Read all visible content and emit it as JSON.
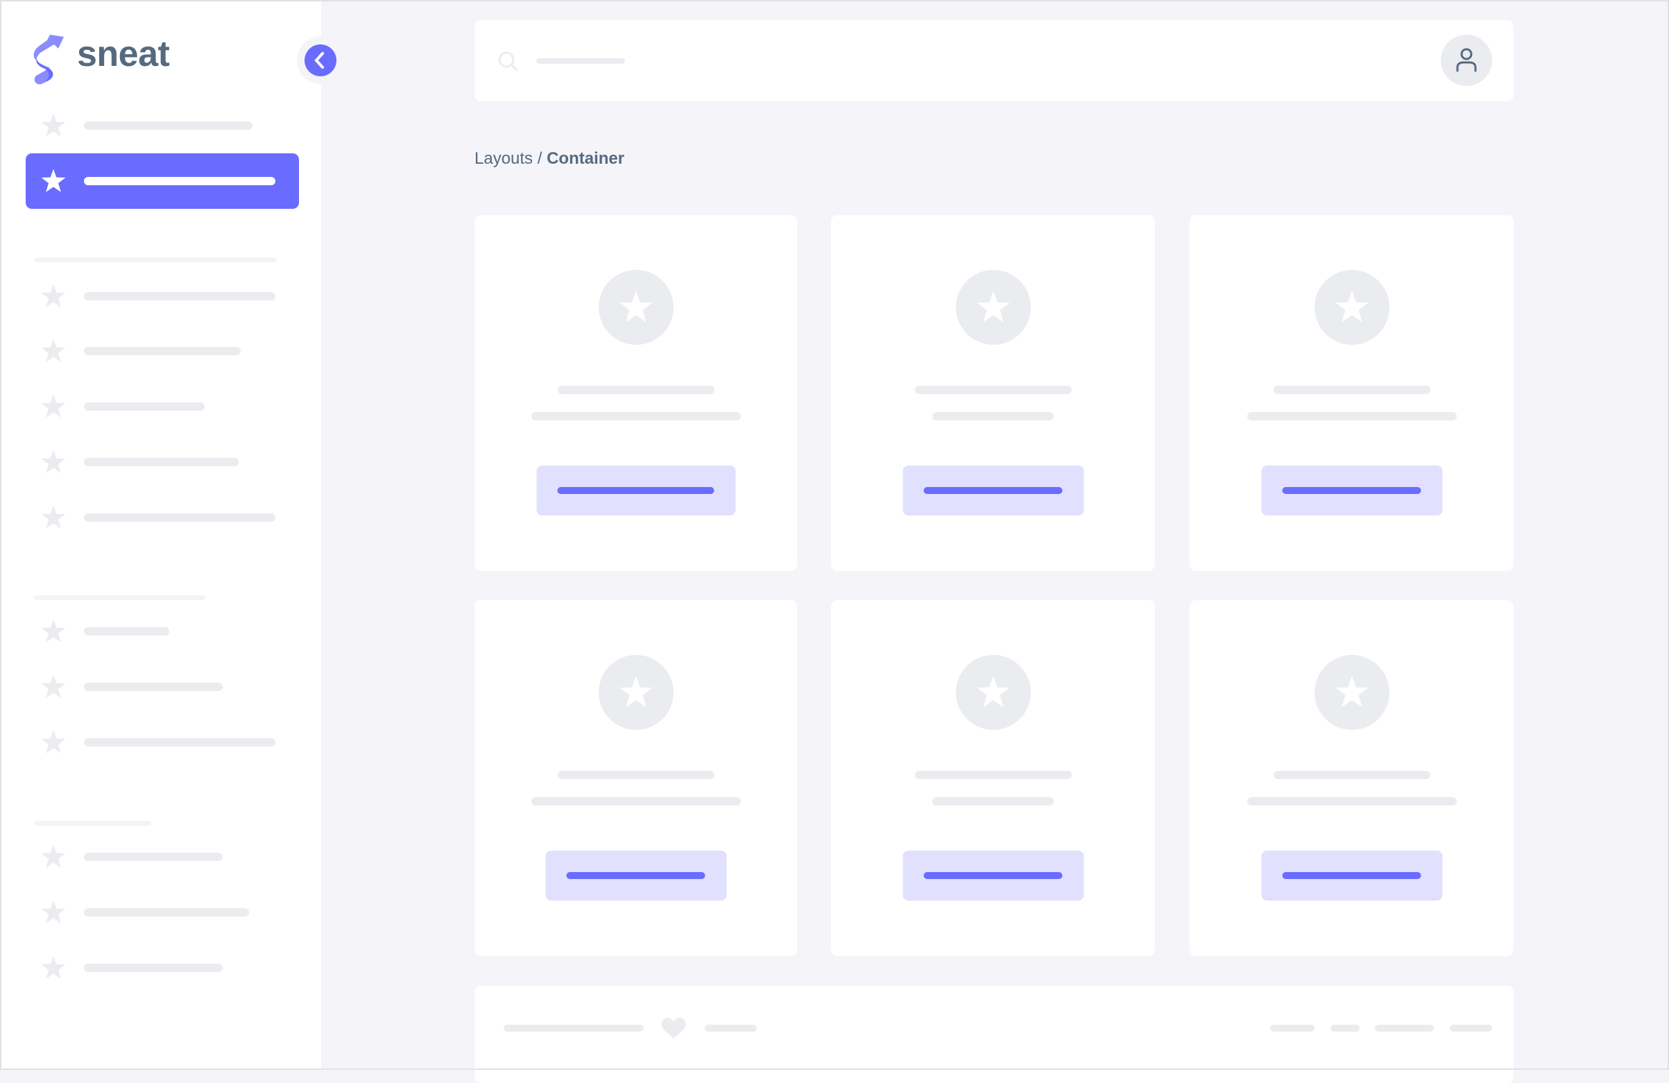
{
  "brand": {
    "name": "sneat",
    "logo_icon": "sneat-s-logo"
  },
  "breadcrumb": {
    "parent": "Layouts",
    "separator": " / ",
    "current": "Container"
  },
  "colors": {
    "primary": "#696cff",
    "primary_light": "#e1e0fe",
    "background": "#f4f4f9",
    "skeleton": "#ebecf0",
    "text": "#566a7f"
  },
  "sidebar": {
    "active_index": 1,
    "toggle_icon": "chevron-left-icon",
    "item_icon": "star-icon"
  },
  "header": {
    "search_icon": "search-icon",
    "avatar_icon": "user-icon"
  },
  "footer": {
    "icon": "heart-icon"
  }
}
